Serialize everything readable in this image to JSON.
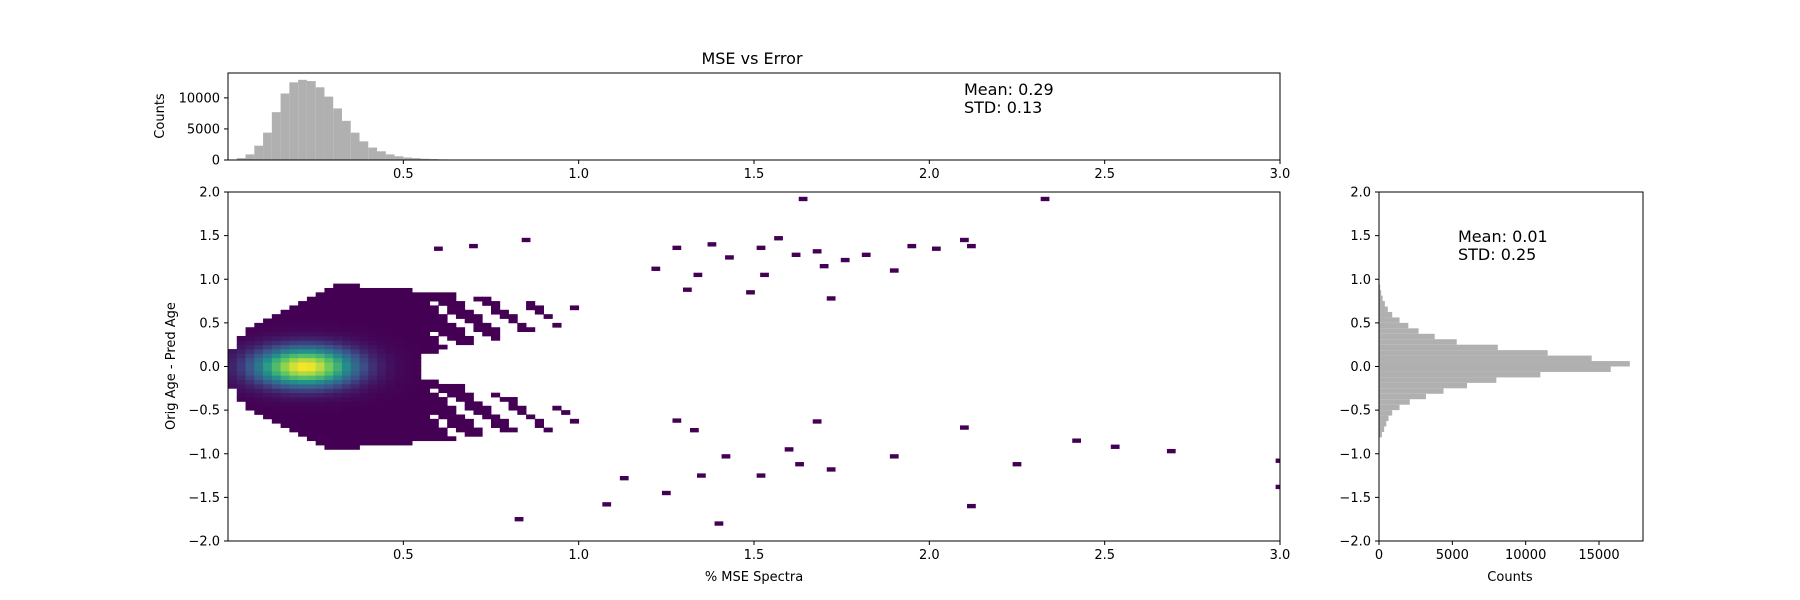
{
  "chart_data": [
    {
      "id": "top_hist",
      "type": "bar",
      "title": "MSE vs Error",
      "xlabel": "",
      "ylabel": "Counts",
      "xlim": [
        0.0,
        3.0
      ],
      "ylim": [
        0,
        14000
      ],
      "xticks": [
        "0.5",
        "1.0",
        "1.5",
        "2.0",
        "2.5",
        "3.0"
      ],
      "yticks": [
        "0",
        "5000",
        "10000"
      ],
      "bin_width": 0.025,
      "bins_start": [
        0.025,
        0.05,
        0.075,
        0.1,
        0.125,
        0.15,
        0.175,
        0.2,
        0.225,
        0.25,
        0.275,
        0.3,
        0.325,
        0.35,
        0.375,
        0.4,
        0.425,
        0.45,
        0.475,
        0.5,
        0.525,
        0.55,
        0.575,
        0.6,
        0.625,
        0.65,
        0.675,
        0.7,
        0.725,
        0.75,
        0.775,
        0.8,
        0.825
      ],
      "values": [
        300,
        900,
        2300,
        4400,
        7700,
        10700,
        12500,
        12900,
        12700,
        11700,
        10200,
        8300,
        6300,
        4400,
        3000,
        2000,
        1400,
        900,
        600,
        400,
        300,
        200,
        150,
        100,
        80,
        60,
        50,
        40,
        30,
        25,
        20,
        15,
        10
      ],
      "color": "#b0b0b0",
      "annotations": [
        "Mean: 0.29",
        "STD: 0.13"
      ],
      "grid": false
    },
    {
      "id": "main_hist2d",
      "type": "heatmap",
      "xlabel": "% MSE Spectra",
      "ylabel": "Orig Age - Pred Age",
      "xlim": [
        0.0,
        3.0
      ],
      "ylim": [
        -2.0,
        2.0
      ],
      "xticks": [
        "0.5",
        "1.0",
        "1.5",
        "2.0",
        "2.5",
        "3.0"
      ],
      "yticks": [
        "2.0",
        "1.5",
        "1.0",
        "0.5",
        "0.0",
        "−0.5",
        "−1.0",
        "−1.5",
        "−2.0"
      ],
      "colormap": "viridis",
      "core": {
        "mean_x": 0.22,
        "mean_y": 0.0,
        "peak_count": 1
      },
      "outlier_points": [
        {
          "x": 1.64,
          "y": 1.92
        },
        {
          "x": 2.33,
          "y": 1.92
        },
        {
          "x": 2.1,
          "y": 1.45
        },
        {
          "x": 2.12,
          "y": 1.38
        },
        {
          "x": 1.95,
          "y": 1.38
        },
        {
          "x": 2.02,
          "y": 1.35
        },
        {
          "x": 1.9,
          "y": 1.1
        },
        {
          "x": 1.76,
          "y": 1.22
        },
        {
          "x": 1.68,
          "y": 1.32
        },
        {
          "x": 1.57,
          "y": 1.47
        },
        {
          "x": 1.38,
          "y": 1.4
        },
        {
          "x": 1.28,
          "y": 1.36
        },
        {
          "x": 1.52,
          "y": 1.36
        },
        {
          "x": 1.43,
          "y": 1.25
        },
        {
          "x": 1.62,
          "y": 1.28
        },
        {
          "x": 1.82,
          "y": 1.28
        },
        {
          "x": 1.7,
          "y": 1.15
        },
        {
          "x": 1.53,
          "y": 1.05
        },
        {
          "x": 1.49,
          "y": 0.85
        },
        {
          "x": 1.72,
          "y": 0.78
        },
        {
          "x": 1.31,
          "y": 0.88
        },
        {
          "x": 1.22,
          "y": 1.12
        },
        {
          "x": 1.34,
          "y": 1.05
        },
        {
          "x": 0.85,
          "y": 1.45
        },
        {
          "x": 0.7,
          "y": 1.38
        },
        {
          "x": 0.6,
          "y": 1.35
        },
        {
          "x": 2.25,
          "y": -1.12
        },
        {
          "x": 2.12,
          "y": -1.6
        },
        {
          "x": 1.4,
          "y": -1.8
        },
        {
          "x": 0.83,
          "y": -1.75
        },
        {
          "x": 2.42,
          "y": -0.85
        },
        {
          "x": 2.53,
          "y": -0.92
        },
        {
          "x": 2.69,
          "y": -0.97
        },
        {
          "x": 3.0,
          "y": -1.08
        },
        {
          "x": 3.0,
          "y": -1.38
        },
        {
          "x": 1.9,
          "y": -1.03
        },
        {
          "x": 2.1,
          "y": -0.7
        },
        {
          "x": 1.72,
          "y": -1.18
        },
        {
          "x": 1.63,
          "y": -1.12
        },
        {
          "x": 1.52,
          "y": -1.25
        },
        {
          "x": 1.6,
          "y": -0.95
        },
        {
          "x": 1.68,
          "y": -0.63
        },
        {
          "x": 1.42,
          "y": -1.03
        },
        {
          "x": 1.35,
          "y": -1.25
        },
        {
          "x": 1.33,
          "y": -0.73
        },
        {
          "x": 1.28,
          "y": -0.62
        },
        {
          "x": 1.13,
          "y": -1.28
        },
        {
          "x": 1.08,
          "y": -1.58
        },
        {
          "x": 1.25,
          "y": -1.45
        }
      ]
    },
    {
      "id": "right_hist",
      "type": "bar",
      "orientation": "horizontal",
      "xlabel": "Counts",
      "ylabel": "",
      "xlim": [
        0,
        18000
      ],
      "ylim": [
        -2.0,
        2.0
      ],
      "xticks": [
        "0",
        "5000",
        "10000",
        "15000"
      ],
      "yticks": [
        "2.0",
        "1.5",
        "1.0",
        "0.5",
        "0.0",
        "−0.5",
        "−1.0",
        "−1.5",
        "−2.0"
      ],
      "bin_height": 0.0625,
      "bin_edges_low": [
        -0.8125,
        -0.75,
        -0.6875,
        -0.625,
        -0.5625,
        -0.5,
        -0.4375,
        -0.375,
        -0.3125,
        -0.25,
        -0.1875,
        -0.125,
        -0.0625,
        0.0,
        0.0625,
        0.125,
        0.1875,
        0.25,
        0.3125,
        0.375,
        0.4375,
        0.5,
        0.5625,
        0.625,
        0.6875,
        0.75,
        0.8125,
        0.875
      ],
      "values": [
        200,
        350,
        500,
        650,
        900,
        1400,
        2100,
        3200,
        4400,
        6000,
        8000,
        11000,
        15800,
        17100,
        14500,
        11500,
        8100,
        5300,
        3800,
        2700,
        2000,
        1400,
        900,
        600,
        400,
        250,
        150,
        80
      ],
      "color": "#b0b0b0",
      "annotations": [
        "Mean: 0.01",
        "STD: 0.25"
      ],
      "grid": false
    }
  ]
}
